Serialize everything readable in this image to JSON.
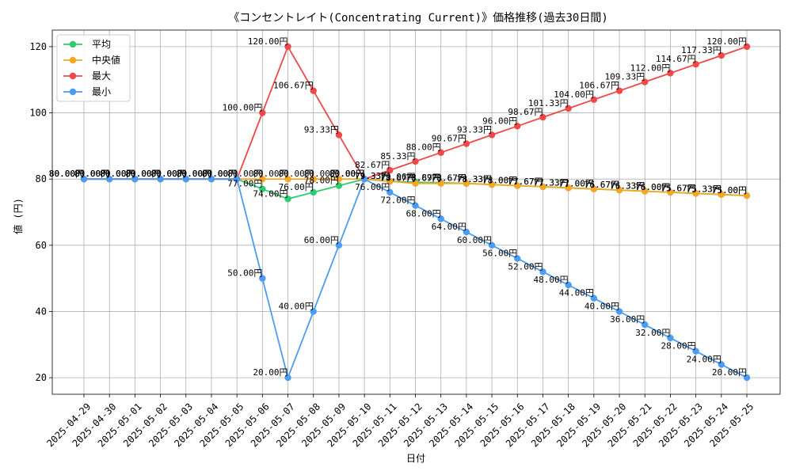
{
  "chart_data": {
    "type": "line",
    "title": "《コンセントレイト(Concentrating Current)》価格推移(過去30日間)",
    "xlabel": "日付",
    "ylabel": "値 (円)",
    "ylim": [
      15,
      125
    ],
    "yticks": [
      20,
      40,
      60,
      80,
      100,
      120
    ],
    "grid": true,
    "legend_position": "top-left",
    "label_suffix": "円",
    "categories": [
      "2025-04-29",
      "2025-04-30",
      "2025-05-01",
      "2025-05-02",
      "2025-05-03",
      "2025-05-04",
      "2025-05-05",
      "2025-05-06",
      "2025-05-07",
      "2025-05-08",
      "2025-05-09",
      "2025-05-10",
      "2025-05-11",
      "2025-05-12",
      "2025-05-13",
      "2025-05-14",
      "2025-05-15",
      "2025-05-16",
      "2025-05-17",
      "2025-05-18",
      "2025-05-19",
      "2025-05-20",
      "2025-05-21",
      "2025-05-22",
      "2025-05-23",
      "2025-05-24",
      "2025-05-25"
    ],
    "series": [
      {
        "name": "平均",
        "color": "#2ecc71",
        "values": [
          80,
          80,
          80,
          80,
          80,
          80,
          80,
          77,
          74,
          76,
          78,
          80,
          79.33,
          79.06,
          78.89,
          78.67,
          78.33,
          78,
          77.67,
          77.33,
          77,
          76.67,
          76.33,
          76,
          75.67,
          75.33,
          75
        ]
      },
      {
        "name": "中央値",
        "color": "#f5a623",
        "values": [
          80,
          80,
          80,
          80,
          80,
          80,
          80,
          80,
          80,
          80,
          80,
          80,
          79.33,
          78.67,
          78.67,
          78.67,
          78.33,
          78,
          77.67,
          77.33,
          77,
          76.67,
          76.33,
          76,
          75.67,
          75.33,
          75
        ]
      },
      {
        "name": "最大",
        "color": "#f04848",
        "values": [
          80,
          80,
          80,
          80,
          80,
          80,
          80,
          100,
          120,
          106.67,
          93.33,
          80,
          82.67,
          85.33,
          88,
          90.67,
          93.33,
          96,
          98.67,
          101.33,
          104,
          106.67,
          109.33,
          112,
          114.67,
          117.33,
          120
        ]
      },
      {
        "name": "最小",
        "color": "#4a9cf5",
        "values": [
          80,
          80,
          80,
          80,
          80,
          80,
          80,
          50,
          20,
          40,
          60,
          80,
          76,
          72,
          68,
          64,
          60,
          56,
          52,
          48,
          44,
          40,
          36,
          32,
          28,
          24,
          20
        ]
      }
    ]
  }
}
